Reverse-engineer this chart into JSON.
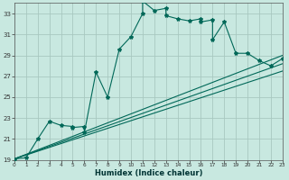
{
  "xlabel": "Humidex (Indice chaleur)",
  "xlim": [
    0,
    23
  ],
  "ylim": [
    19,
    34
  ],
  "yticks": [
    19,
    21,
    23,
    25,
    27,
    29,
    31,
    33
  ],
  "xticks": [
    0,
    1,
    2,
    3,
    4,
    5,
    6,
    7,
    8,
    9,
    10,
    11,
    12,
    13,
    14,
    15,
    16,
    17,
    18,
    19,
    20,
    21,
    22,
    23
  ],
  "bg_color": "#c8e8e0",
  "grid_color": "#b0d0c8",
  "line_color": "#006858",
  "series": [
    [
      0,
      19.1
    ],
    [
      1,
      19.2
    ],
    [
      2,
      21.0
    ],
    [
      3,
      22.7
    ],
    [
      4,
      22.3
    ],
    [
      5,
      22.2
    ],
    [
      5,
      22.1
    ],
    [
      6,
      22.2
    ],
    [
      6,
      21.6
    ],
    [
      7,
      27.4
    ],
    [
      8,
      25.0
    ],
    [
      9,
      29.6
    ],
    [
      10,
      30.8
    ],
    [
      11,
      33.0
    ],
    [
      11,
      34.2
    ],
    [
      12,
      33.3
    ],
    [
      13,
      33.5
    ],
    [
      13,
      32.8
    ],
    [
      14,
      32.5
    ],
    [
      15,
      32.3
    ],
    [
      16,
      32.5
    ],
    [
      16,
      32.2
    ],
    [
      17,
      32.4
    ],
    [
      17,
      30.5
    ],
    [
      18,
      32.2
    ],
    [
      19,
      29.2
    ],
    [
      20,
      29.2
    ],
    [
      21,
      28.5
    ],
    [
      22,
      28.0
    ],
    [
      23,
      28.7
    ]
  ],
  "linear1": [
    [
      0,
      19.1
    ],
    [
      23,
      29.0
    ]
  ],
  "linear2": [
    [
      0,
      19.1
    ],
    [
      23,
      27.5
    ]
  ],
  "linear3": [
    [
      0,
      19.1
    ],
    [
      23,
      28.2
    ]
  ]
}
